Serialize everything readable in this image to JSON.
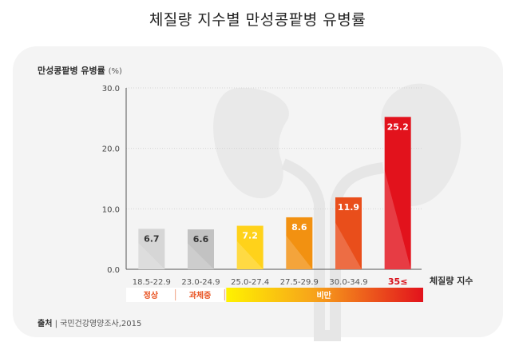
{
  "title": "체질량 지수별 만성콩팥병 유병률",
  "source_label": "출처",
  "source_text": "국민건강영양조사,2015",
  "colors": {
    "normal": "#d0d0d0",
    "mid": "#bfbfbf",
    "accent_red": "#d8101a"
  },
  "icon": "kidney-illustration",
  "chart_data": {
    "type": "bar",
    "title": "체질량 지수별 만성콩팥병 유병률",
    "ylabel": "만성콩팥병 유병률",
    "yunit": "(%)",
    "xlabel": "체질량 지수",
    "ylim": [
      0,
      30
    ],
    "yticks": [
      "0.0",
      "10.0",
      "20.0",
      "30.0"
    ],
    "categories": [
      "18.5-22.9",
      "23.0-24.9",
      "25.0-27.4",
      "27.5-29.9",
      "30.0-34.9",
      "35≤"
    ],
    "values": [
      6.7,
      6.6,
      7.2,
      8.6,
      11.9,
      25.2
    ],
    "value_labels": [
      "6.7",
      "6.6",
      "7.2",
      "8.6",
      "11.9",
      "25.2"
    ],
    "bar_colors": [
      "#d6d6d6",
      "#c2c2c2",
      "#ffd21a",
      "#f29111",
      "#e94e1b",
      "#e2121c"
    ],
    "label_colors": [
      "#333333",
      "#333333",
      "#ffffff",
      "#ffffff",
      "#ffffff",
      "#ffffff"
    ],
    "groups": [
      {
        "label": "정상",
        "color": "#e8501e"
      },
      {
        "label": "과체중",
        "color": "#e8501e"
      },
      {
        "label": "비만",
        "color": "#ffffff"
      }
    ]
  }
}
